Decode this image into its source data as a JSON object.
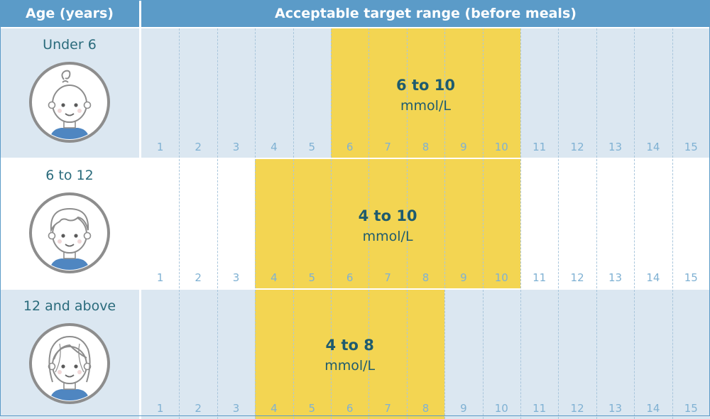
{
  "colors": {
    "header_bg": "#5b9bc8",
    "header_text": "#ffffff",
    "shaded_row_bg": "#dbe7f1",
    "plain_row_bg": "#ffffff",
    "range_fill": "#f3d552",
    "label_text": "#2a6b7c",
    "tick_text": "#7fb1d3",
    "face_outline": "#8d8d8d",
    "shirt": "#4f86c1"
  },
  "chart_data": {
    "type": "table",
    "title": "",
    "columns": [
      "Age (years)",
      "Acceptable target range (before meals)"
    ],
    "x_ticks": [
      1,
      2,
      3,
      4,
      5,
      6,
      7,
      8,
      9,
      10,
      11,
      12,
      13,
      14,
      15
    ],
    "xlim": [
      0.5,
      15.5
    ],
    "grid": true,
    "rows": [
      {
        "age": "Under 6",
        "icon": "baby-face-icon",
        "low": 6,
        "high": 10,
        "value_label": "6 to 10",
        "unit": "mmol/L",
        "shaded": true
      },
      {
        "age": "6 to 12",
        "icon": "child-face-icon",
        "low": 4,
        "high": 10,
        "value_label": "4 to 10",
        "unit": "mmol/L",
        "shaded": false
      },
      {
        "age": "12 and above",
        "icon": "teen-girl-face-icon",
        "low": 4,
        "high": 8,
        "value_label": "4 to 8",
        "unit": "mmol/L",
        "shaded": true
      }
    ]
  }
}
